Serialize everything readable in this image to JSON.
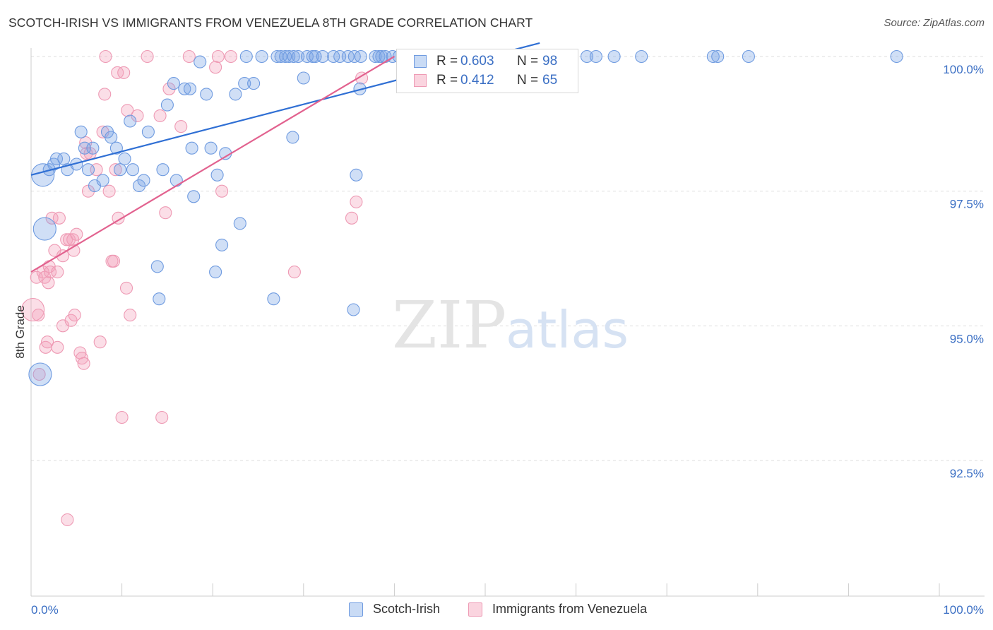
{
  "title": "SCOTCH-IRISH VS IMMIGRANTS FROM VENEZUELA 8TH GRADE CORRELATION CHART",
  "source": "Source: ZipAtlas.com",
  "watermark": {
    "zip": "ZIP",
    "atlas": "atlas"
  },
  "colors": {
    "blue_fill": "rgba(120,164,230,0.35)",
    "blue_stroke": "#6f9be0",
    "blue_line": "#2f6fd4",
    "pink_fill": "rgba(244,160,185,0.35)",
    "pink_stroke": "#ee9ab4",
    "pink_line": "#e2628f",
    "tick_label": "#3b6fc4",
    "grid": "#dddddd"
  },
  "legend": {
    "series": [
      {
        "r_label": "R =",
        "r_value": "0.603",
        "n_label": "N =",
        "n_value": "98"
      },
      {
        "r_label": "R =",
        "r_value": "0.412",
        "n_label": "N =",
        "n_value": "65"
      }
    ]
  },
  "bottom_legend": [
    "Scotch-Irish",
    "Immigrants from Venezuela"
  ],
  "chart_data": {
    "type": "scatter",
    "title": "SCOTCH-IRISH VS IMMIGRANTS FROM VENEZUELA 8TH GRADE CORRELATION CHART",
    "xlabel": "",
    "ylabel": "8th Grade",
    "xlim": [
      0,
      100
    ],
    "ylim": [
      90.3,
      100.4
    ],
    "x_tick_labels": [
      "0.0%",
      "100.0%"
    ],
    "y_ticks": [
      92.5,
      95.0,
      97.5,
      100.0
    ],
    "y_tick_labels": [
      "92.5%",
      "95.0%",
      "97.5%",
      "100.0%"
    ],
    "grid": "horizontal dashed",
    "legend_position": "top-center",
    "series": [
      {
        "name": "Scotch-Irish",
        "r": 0.603,
        "n": 98,
        "trend": {
          "x": [
            0,
            56
          ],
          "y": [
            97.8,
            100.25
          ]
        },
        "points": [
          [
            1.3,
            97.8,
            4
          ],
          [
            1.5,
            96.8,
            5
          ],
          [
            1.0,
            94.1,
            5
          ],
          [
            2.0,
            97.9,
            1
          ],
          [
            2.5,
            98.0,
            1
          ],
          [
            2.8,
            98.1,
            1
          ],
          [
            3.6,
            98.1,
            1
          ],
          [
            4.0,
            97.9,
            1
          ],
          [
            5.0,
            98.0,
            1
          ],
          [
            5.5,
            98.6,
            1
          ],
          [
            5.9,
            98.3,
            1
          ],
          [
            6.3,
            97.9,
            1
          ],
          [
            6.8,
            98.3,
            1
          ],
          [
            7.0,
            97.6,
            1
          ],
          [
            7.9,
            97.7,
            1
          ],
          [
            8.4,
            98.6,
            1
          ],
          [
            8.8,
            98.5,
            1
          ],
          [
            9.4,
            98.3,
            1
          ],
          [
            9.8,
            97.9,
            1
          ],
          [
            10.3,
            98.1,
            1
          ],
          [
            10.9,
            98.8,
            1
          ],
          [
            11.2,
            97.9,
            1
          ],
          [
            11.9,
            97.6,
            1
          ],
          [
            12.4,
            97.7,
            1
          ],
          [
            12.9,
            98.6,
            1
          ],
          [
            13.9,
            96.1,
            1
          ],
          [
            14.1,
            95.5,
            1
          ],
          [
            14.5,
            97.9,
            1
          ],
          [
            15.0,
            99.1,
            1
          ],
          [
            15.7,
            99.5,
            1
          ],
          [
            16.0,
            97.7,
            1
          ],
          [
            16.9,
            99.4,
            1
          ],
          [
            17.5,
            99.4,
            1
          ],
          [
            17.7,
            98.3,
            1
          ],
          [
            17.9,
            97.4,
            1
          ],
          [
            18.6,
            99.9,
            1
          ],
          [
            19.3,
            99.3,
            1
          ],
          [
            19.8,
            98.3,
            1
          ],
          [
            20.3,
            96.0,
            1
          ],
          [
            20.5,
            97.8,
            1
          ],
          [
            21.0,
            96.5,
            1
          ],
          [
            21.4,
            98.2,
            1
          ],
          [
            22.5,
            99.3,
            1
          ],
          [
            23.0,
            96.9,
            1
          ],
          [
            23.5,
            99.5,
            1
          ],
          [
            24.5,
            99.5,
            1
          ],
          [
            26.7,
            95.5,
            1
          ],
          [
            28.8,
            98.5,
            1
          ],
          [
            30.0,
            99.6,
            1
          ],
          [
            35.5,
            95.3,
            1
          ],
          [
            35.8,
            97.8,
            1
          ],
          [
            36.2,
            99.4,
            1
          ],
          [
            23.7,
            100.0,
            1
          ],
          [
            25.4,
            100.0,
            1
          ],
          [
            27.1,
            100.0,
            1
          ],
          [
            27.5,
            100.0,
            1
          ],
          [
            28.0,
            100.0,
            1
          ],
          [
            28.4,
            100.0,
            1
          ],
          [
            28.9,
            100.0,
            1
          ],
          [
            29.4,
            100.0,
            1
          ],
          [
            30.4,
            100.0,
            1
          ],
          [
            31.0,
            100.0,
            1
          ],
          [
            31.3,
            100.0,
            1
          ],
          [
            32.1,
            100.0,
            1
          ],
          [
            33.3,
            100.0,
            1
          ],
          [
            34.0,
            100.0,
            1
          ],
          [
            34.9,
            100.0,
            1
          ],
          [
            35.6,
            100.0,
            1
          ],
          [
            36.3,
            100.0,
            1
          ],
          [
            37.9,
            100.0,
            1
          ],
          [
            38.3,
            100.0,
            1
          ],
          [
            38.6,
            100.0,
            1
          ],
          [
            39.0,
            100.0,
            1
          ],
          [
            39.8,
            100.0,
            1
          ],
          [
            40.5,
            100.0,
            1
          ],
          [
            41.0,
            100.0,
            1
          ],
          [
            42.3,
            100.0,
            1
          ],
          [
            43.8,
            100.0,
            1
          ],
          [
            44.7,
            100.0,
            1
          ],
          [
            45.5,
            100.0,
            1
          ],
          [
            46.0,
            100.0,
            1
          ],
          [
            47.3,
            100.0,
            1
          ],
          [
            48.3,
            100.0,
            1
          ],
          [
            49.0,
            100.0,
            1
          ],
          [
            50.5,
            100.0,
            1
          ],
          [
            51.2,
            100.0,
            1
          ],
          [
            52.4,
            100.0,
            1
          ],
          [
            55.7,
            100.0,
            1
          ],
          [
            57.0,
            100.0,
            1
          ],
          [
            59.0,
            100.0,
            1
          ],
          [
            61.2,
            100.0,
            1
          ],
          [
            62.2,
            100.0,
            1
          ],
          [
            64.2,
            100.0,
            1
          ],
          [
            67.2,
            100.0,
            1
          ],
          [
            75.1,
            100.0,
            1
          ],
          [
            75.6,
            100.0,
            1
          ],
          [
            79.0,
            100.0,
            1
          ],
          [
            95.3,
            100.0,
            1
          ]
        ]
      },
      {
        "name": "Immigrants from Venezuela",
        "r": 0.412,
        "n": 65,
        "trend": {
          "x": [
            0,
            40
          ],
          "y": [
            96.0,
            100.0
          ]
        },
        "points": [
          [
            0.2,
            95.3,
            4
          ],
          [
            0.6,
            95.9,
            1
          ],
          [
            0.8,
            95.2,
            1
          ],
          [
            0.9,
            94.1,
            1
          ],
          [
            1.3,
            96.0,
            1
          ],
          [
            1.5,
            95.9,
            1
          ],
          [
            1.6,
            94.6,
            1
          ],
          [
            1.8,
            94.7,
            1
          ],
          [
            1.9,
            95.8,
            1
          ],
          [
            2.0,
            96.1,
            1
          ],
          [
            2.1,
            96.0,
            1
          ],
          [
            2.3,
            97.0,
            1
          ],
          [
            2.6,
            96.4,
            1
          ],
          [
            2.9,
            96.0,
            1
          ],
          [
            2.9,
            94.6,
            1
          ],
          [
            3.1,
            97.0,
            1
          ],
          [
            3.5,
            96.3,
            1
          ],
          [
            3.5,
            95.0,
            1
          ],
          [
            3.9,
            96.6,
            1
          ],
          [
            4.0,
            91.4,
            1
          ],
          [
            4.2,
            96.6,
            1
          ],
          [
            4.4,
            95.1,
            1
          ],
          [
            4.6,
            96.6,
            1
          ],
          [
            4.7,
            96.4,
            1
          ],
          [
            4.8,
            95.2,
            1
          ],
          [
            5.0,
            96.7,
            1
          ],
          [
            5.4,
            94.5,
            1
          ],
          [
            5.6,
            94.4,
            1
          ],
          [
            5.8,
            94.3,
            1
          ],
          [
            6.0,
            98.4,
            1
          ],
          [
            6.1,
            98.2,
            1
          ],
          [
            6.3,
            97.5,
            1
          ],
          [
            6.5,
            98.2,
            1
          ],
          [
            7.2,
            97.9,
            1
          ],
          [
            7.6,
            94.7,
            1
          ],
          [
            7.9,
            98.6,
            1
          ],
          [
            8.1,
            99.3,
            1
          ],
          [
            8.2,
            100.0,
            1
          ],
          [
            8.6,
            97.5,
            1
          ],
          [
            8.9,
            96.2,
            1
          ],
          [
            9.1,
            96.2,
            1
          ],
          [
            9.3,
            97.9,
            1
          ],
          [
            9.5,
            99.7,
            1
          ],
          [
            9.6,
            97.0,
            1
          ],
          [
            10.0,
            93.3,
            1
          ],
          [
            10.2,
            99.7,
            1
          ],
          [
            10.5,
            95.7,
            1
          ],
          [
            10.6,
            99.0,
            1
          ],
          [
            10.9,
            95.2,
            1
          ],
          [
            11.7,
            98.9,
            1
          ],
          [
            12.8,
            100.0,
            1
          ],
          [
            14.2,
            98.9,
            1
          ],
          [
            14.4,
            93.3,
            1
          ],
          [
            14.8,
            97.1,
            1
          ],
          [
            15.2,
            99.4,
            1
          ],
          [
            16.5,
            98.7,
            1
          ],
          [
            17.4,
            100.0,
            1
          ],
          [
            20.6,
            100.0,
            1
          ],
          [
            21.0,
            97.5,
            1
          ],
          [
            22.0,
            100.0,
            1
          ],
          [
            29.0,
            96.0,
            1
          ],
          [
            35.3,
            97.0,
            1
          ],
          [
            35.8,
            97.3,
            1
          ],
          [
            36.4,
            99.6,
            1
          ],
          [
            20.3,
            99.8,
            1
          ]
        ]
      }
    ]
  }
}
